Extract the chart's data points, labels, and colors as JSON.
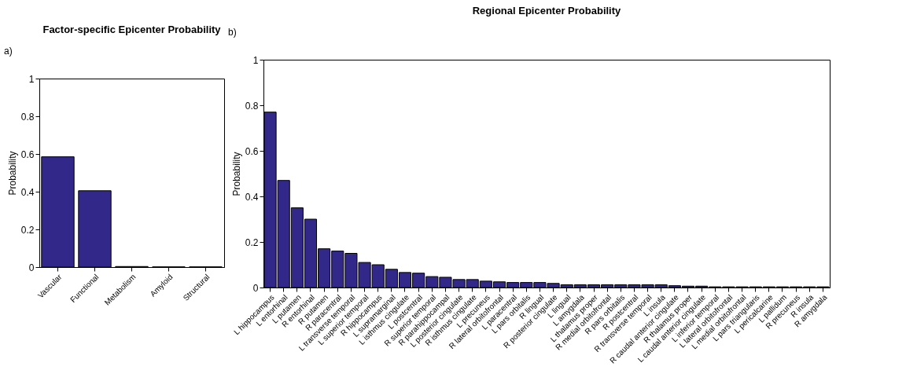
{
  "chart_data": [
    {
      "type": "bar",
      "title": "Factor-specific Epicenter Probability",
      "ylabel": "Probability",
      "annotations": [
        "a)"
      ],
      "categories": [
        "Vascular",
        "Functional",
        "Metabolism",
        "Amyloid",
        "Structural"
      ],
      "values": [
        0.585,
        0.405,
        0.003,
        0.001,
        0.001
      ],
      "color": "#32288a",
      "ylim": [
        0,
        1
      ],
      "yticks": [
        0,
        0.2,
        0.4,
        0.6,
        0.8,
        1
      ],
      "grid": false
    },
    {
      "type": "bar",
      "title": "Regional Epicenter Probability",
      "ylabel": "Probability",
      "annotations": [
        "b)"
      ],
      "categories": [
        "L hippocampus",
        "L entorhinal",
        "L putamen",
        "R entorhinal",
        "R putamen",
        "R paracentral",
        "L transverse temporal",
        "L superior temporal",
        "R hippocampus",
        "L supramarginal",
        "L isthmus cingulate",
        "L postcentral",
        "R superior temporal",
        "R parahippocampal",
        "L posterior cingulate",
        "R isthmus cingulate",
        "L precuneus",
        "R lateral orbitofrontal",
        "L paracentral",
        "L pars orbitalis",
        "R lingual",
        "R posterior cingulate",
        "L lingual",
        "L amygdala",
        "L thalamus proper",
        "R medial orbitofrontal",
        "R pars orbitalis",
        "R postcentral",
        "R transverse temporal",
        "L insula",
        "R caudal anterior cingulate",
        "R thalamus proper",
        "L caudal anterior cingulate",
        "L inferior temporal",
        "L lateral orbitofrontal",
        "L medial orbitofrontal",
        "L pars triangularis",
        "L pericalcarine",
        "L pallidum",
        "R precuneus",
        "R insula",
        "R amygdala"
      ],
      "values": [
        0.77,
        0.47,
        0.35,
        0.3,
        0.17,
        0.16,
        0.15,
        0.11,
        0.1,
        0.08,
        0.066,
        0.063,
        0.048,
        0.045,
        0.035,
        0.035,
        0.028,
        0.025,
        0.022,
        0.022,
        0.022,
        0.018,
        0.012,
        0.012,
        0.012,
        0.012,
        0.012,
        0.012,
        0.012,
        0.012,
        0.008,
        0.006,
        0.006,
        0.003,
        0.003,
        0.003,
        0.003,
        0.003,
        0.003,
        0.003,
        0.003,
        0.003
      ],
      "color": "#32288a",
      "ylim": [
        0,
        1
      ],
      "yticks": [
        0,
        0.2,
        0.4,
        0.6,
        0.8,
        1
      ],
      "grid": false
    }
  ]
}
